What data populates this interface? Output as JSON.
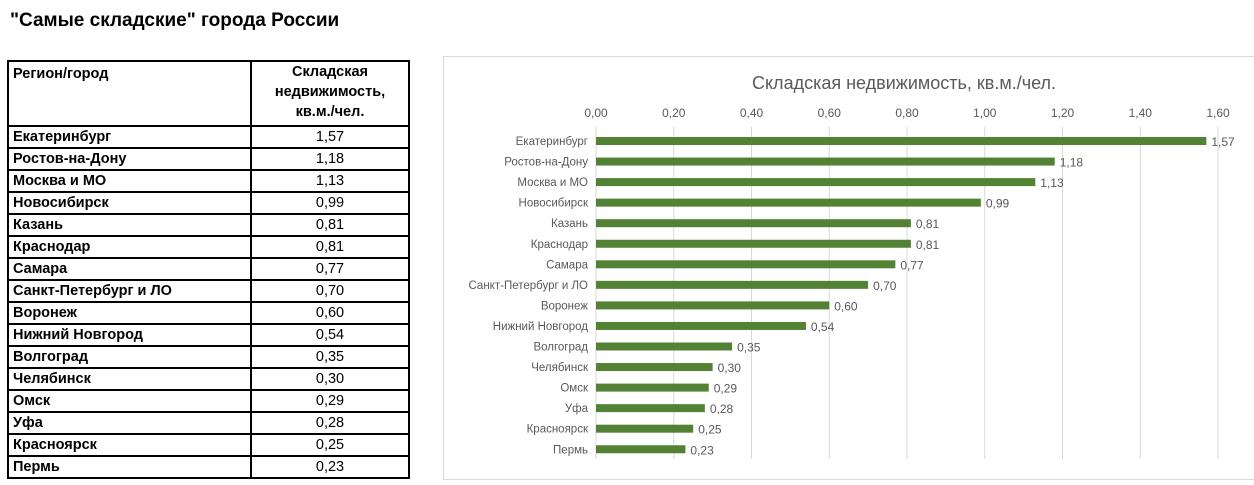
{
  "page_title": "\"Самые складские\" города России",
  "table": {
    "headers": [
      "Регион/город",
      "Складская недвижимость, кв.м./чел."
    ],
    "rows": [
      [
        "Екатеринбург",
        "1,57"
      ],
      [
        "Ростов-на-Дону",
        "1,18"
      ],
      [
        "Москва и МО",
        "1,13"
      ],
      [
        "Новосибирск",
        "0,99"
      ],
      [
        "Казань",
        "0,81"
      ],
      [
        "Краснодар",
        "0,81"
      ],
      [
        "Самара",
        "0,77"
      ],
      [
        "Санкт-Петербург и ЛО",
        "0,70"
      ],
      [
        "Воронеж",
        "0,60"
      ],
      [
        "Нижний Новгород",
        "0,54"
      ],
      [
        "Волгоград",
        "0,35"
      ],
      [
        "Челябинск",
        "0,30"
      ],
      [
        "Омск",
        "0,29"
      ],
      [
        "Уфа",
        "0,28"
      ],
      [
        "Красноярск",
        "0,25"
      ],
      [
        "Пермь",
        "0,23"
      ]
    ]
  },
  "chart_data": {
    "type": "bar",
    "orientation": "horizontal",
    "title": "Складская недвижимость, кв.м./чел.",
    "categories": [
      "Екатеринбург",
      "Ростов-на-Дону",
      "Москва и МО",
      "Новосибирск",
      "Казань",
      "Краснодар",
      "Самара",
      "Санкт-Петербург и ЛО",
      "Воронеж",
      "Нижний Новгород",
      "Волгоград",
      "Челябинск",
      "Омск",
      "Уфа",
      "Красноярск",
      "Пермь"
    ],
    "values": [
      1.57,
      1.18,
      1.13,
      0.99,
      0.81,
      0.81,
      0.77,
      0.7,
      0.6,
      0.54,
      0.35,
      0.3,
      0.29,
      0.28,
      0.25,
      0.23
    ],
    "data_labels": [
      "1,57",
      "1,18",
      "1,13",
      "0,99",
      "0,81",
      "0,81",
      "0,77",
      "0,70",
      "0,60",
      "0,54",
      "0,35",
      "0,30",
      "0,29",
      "0,28",
      "0,25",
      "0,23"
    ],
    "xlim": [
      0,
      1.6
    ],
    "x_ticks": [
      "0,00",
      "0,20",
      "0,40",
      "0,60",
      "0,80",
      "1,00",
      "1,20",
      "1,40",
      "1,60"
    ],
    "x_axis_position": "top",
    "grid": true,
    "bar_color": "#548235",
    "grid_color": "#d9d9d9"
  }
}
